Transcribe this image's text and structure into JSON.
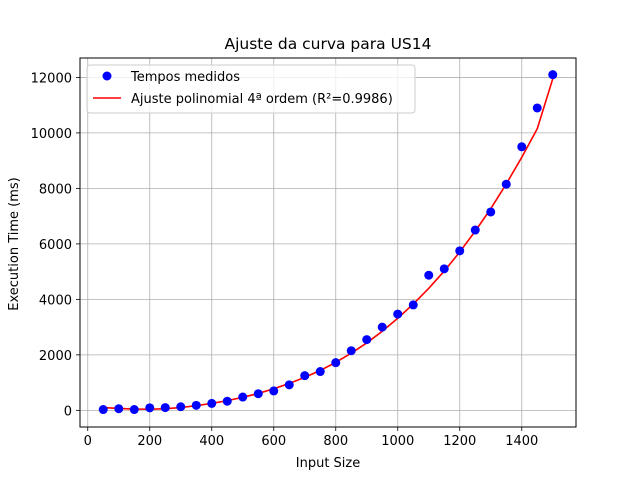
{
  "chart_data": {
    "type": "scatter",
    "title": "Ajuste da curva para US14",
    "xlabel": "Input Size",
    "ylabel": "Execution Time (ms)",
    "xlim": [
      -25,
      1575
    ],
    "ylim": [
      -600,
      12700
    ],
    "xticks": [
      0,
      200,
      400,
      600,
      800,
      1000,
      1200,
      1400
    ],
    "yticks": [
      0,
      2000,
      4000,
      6000,
      8000,
      10000,
      12000
    ],
    "grid": true,
    "legend_position": "top-left",
    "series": [
      {
        "name": "Tempos medidos",
        "kind": "scatter",
        "color": "#0000ff",
        "x": [
          50,
          100,
          150,
          200,
          250,
          300,
          350,
          400,
          450,
          500,
          550,
          600,
          650,
          700,
          750,
          800,
          850,
          900,
          950,
          1000,
          1050,
          1100,
          1150,
          1200,
          1250,
          1300,
          1350,
          1400,
          1450,
          1500
        ],
        "y": [
          30,
          60,
          30,
          90,
          100,
          130,
          180,
          250,
          330,
          480,
          600,
          700,
          920,
          1250,
          1400,
          1720,
          2150,
          2550,
          3000,
          3470,
          3800,
          4870,
          5100,
          5750,
          6500,
          7150,
          8150,
          9500,
          10900,
          12100
        ]
      },
      {
        "name": "Ajuste polinomial 4ª ordem (R²=0.9986)",
        "kind": "line",
        "color": "#ff0000",
        "x": [
          50,
          100,
          150,
          200,
          250,
          300,
          350,
          400,
          450,
          500,
          550,
          600,
          650,
          700,
          750,
          800,
          850,
          900,
          950,
          1000,
          1050,
          1100,
          1150,
          1200,
          1250,
          1300,
          1350,
          1400,
          1450,
          1500
        ],
        "y": [
          100,
          70,
          45,
          40,
          60,
          100,
          170,
          250,
          350,
          470,
          610,
          780,
          970,
          1190,
          1440,
          1730,
          2060,
          2430,
          2850,
          3320,
          3830,
          4400,
          5020,
          5710,
          6460,
          7270,
          8160,
          9120,
          10150,
          11950
        ]
      }
    ]
  }
}
